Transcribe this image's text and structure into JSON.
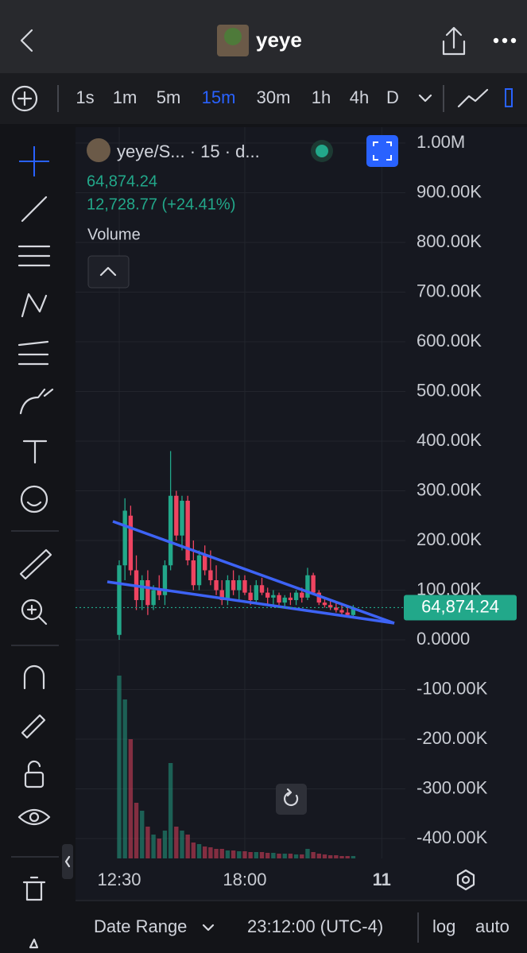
{
  "header": {
    "title": "yeye"
  },
  "toolbar": {
    "timeframes": [
      "1s",
      "1m",
      "5m",
      "15m",
      "30m",
      "1h",
      "4h",
      "D"
    ],
    "active_timeframe": "15m"
  },
  "chart_data": {
    "type": "candlestick",
    "symbol": "yeye/S... · 15 · d...",
    "change": "12,728.77 (+24.41%)",
    "volume_label": "Volume",
    "up_color": "#22a88a",
    "down_color": "#ef4461",
    "categories": [
      "12:30",
      null,
      null,
      null,
      null,
      null,
      null,
      null,
      null,
      null,
      null,
      null,
      null,
      null,
      null,
      null,
      null,
      null,
      null,
      null,
      null,
      null,
      "18:00",
      null,
      null,
      null,
      null,
      null,
      null,
      null,
      null,
      null,
      null,
      null,
      null,
      null,
      null,
      null,
      null,
      null,
      null,
      null,
      null,
      null,
      null,
      null,
      "11"
    ],
    "open": [
      10000,
      150000,
      250000,
      140000,
      80000,
      120000,
      70000,
      100000,
      90000,
      150000,
      290000,
      210000,
      280000,
      160000,
      110000,
      170000,
      140000,
      120000,
      100000,
      80000,
      120000,
      100000,
      120000,
      95000,
      80000,
      110000,
      95000,
      85000,
      90000,
      75000,
      85000,
      80000,
      95000,
      85000,
      130000,
      95000,
      75000,
      70000,
      65000,
      60000,
      55000,
      50000,
      null,
      null,
      null,
      null,
      null
    ],
    "high": [
      160000,
      285000,
      270000,
      170000,
      130000,
      140000,
      110000,
      130000,
      160000,
      380000,
      300000,
      290000,
      290000,
      200000,
      180000,
      190000,
      180000,
      150000,
      120000,
      130000,
      140000,
      130000,
      130000,
      110000,
      120000,
      125000,
      105000,
      100000,
      95000,
      90000,
      95000,
      100000,
      105000,
      145000,
      135000,
      100000,
      85000,
      80000,
      75000,
      70000,
      65000,
      70000,
      null,
      null,
      null,
      null,
      null
    ],
    "low": [
      0,
      120000,
      130000,
      60000,
      60000,
      50000,
      60000,
      80000,
      70000,
      140000,
      200000,
      180000,
      150000,
      100000,
      100000,
      130000,
      110000,
      90000,
      70000,
      70000,
      90000,
      80000,
      90000,
      70000,
      75000,
      90000,
      70000,
      70000,
      70000,
      65000,
      70000,
      70000,
      75000,
      80000,
      90000,
      70000,
      65000,
      60000,
      55000,
      50000,
      45000,
      45000,
      null,
      null,
      null,
      null,
      null
    ],
    "close": [
      150000,
      260000,
      140000,
      80000,
      120000,
      70000,
      100000,
      90000,
      150000,
      290000,
      210000,
      280000,
      160000,
      110000,
      170000,
      140000,
      120000,
      100000,
      80000,
      120000,
      100000,
      120000,
      95000,
      80000,
      110000,
      95000,
      85000,
      90000,
      75000,
      85000,
      80000,
      95000,
      85000,
      130000,
      95000,
      75000,
      70000,
      65000,
      60000,
      55000,
      50000,
      64874.24,
      null,
      null,
      null,
      null,
      null
    ],
    "volume": [
      230,
      200,
      150,
      70,
      60,
      40,
      30,
      25,
      35,
      120,
      40,
      35,
      30,
      20,
      18,
      15,
      14,
      12,
      12,
      10,
      10,
      9,
      9,
      8,
      8,
      8,
      7,
      7,
      6,
      6,
      6,
      5,
      5,
      12,
      8,
      6,
      5,
      4,
      4,
      3,
      3,
      3,
      null,
      null,
      null,
      null,
      null
    ],
    "last_price": {
      "value": 64874.24,
      "label": "64,874.24"
    },
    "ylim": [
      -440000,
      1032000
    ],
    "yticks": [
      {
        "value": 1000000,
        "label": "1.00M"
      },
      {
        "value": 900000,
        "label": "900.00K"
      },
      {
        "value": 800000,
        "label": "800.00K"
      },
      {
        "value": 700000,
        "label": "700.00K"
      },
      {
        "value": 600000,
        "label": "600.00K"
      },
      {
        "value": 500000,
        "label": "500.00K"
      },
      {
        "value": 400000,
        "label": "400.00K"
      },
      {
        "value": 300000,
        "label": "300.00K"
      },
      {
        "value": 200000,
        "label": "200.00K"
      },
      {
        "value": 100000,
        "label": "100.00K"
      },
      {
        "value": 0,
        "label": "0.0000"
      },
      {
        "value": -100000,
        "label": "-100.00K"
      },
      {
        "value": -200000,
        "label": "-200.00K"
      },
      {
        "value": -300000,
        "label": "-300.00K"
      },
      {
        "value": -400000,
        "label": "-400.00K"
      }
    ],
    "grid": true
  },
  "footer": {
    "date_range": "Date Range",
    "time": "23:12:00 (UTC-4)",
    "log": "log",
    "auto": "auto"
  }
}
